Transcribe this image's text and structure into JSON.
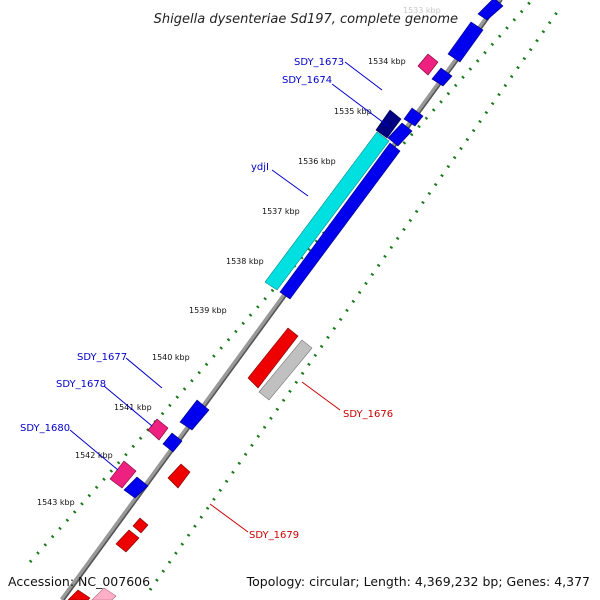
{
  "title": "Shigella dysenteriae Sd197, complete genome",
  "footer": {
    "accession": "Accession: NC_007606",
    "summary": "Topology: circular; Length: 4,369,232 bp; Genes: 4,377"
  },
  "ticks": [
    "1533 kbp",
    "1534 kbp",
    "1535 kbp",
    "1536 kbp",
    "1537 kbp",
    "1538 kbp",
    "1539 kbp",
    "1540 kbp",
    "1541 kbp",
    "1542 kbp",
    "1543 kbp"
  ],
  "gene_labels": {
    "sdy_1673": "SDY_1673",
    "sdy_1674": "SDY_1674",
    "ydjl": "ydjI",
    "sdy_1676": "SDY_1676",
    "sdy_1677": "SDY_1677",
    "sdy_1678": "SDY_1678",
    "sdy_1679": "SDY_1679",
    "sdy_1680": "SDY_1680"
  },
  "colors": {
    "forward_gene": "#0000ee",
    "forward_gene_dark": "#000080",
    "reverse_gene": "#ee0000",
    "highlight_gene": "#00e0e0",
    "pink_gene": "#ee2080",
    "grey_gene": "#c0c0c0",
    "label_forward": "#0000cc",
    "label_reverse": "#cc0000",
    "backbone": "#888888",
    "dots": "#1a7a1a"
  }
}
